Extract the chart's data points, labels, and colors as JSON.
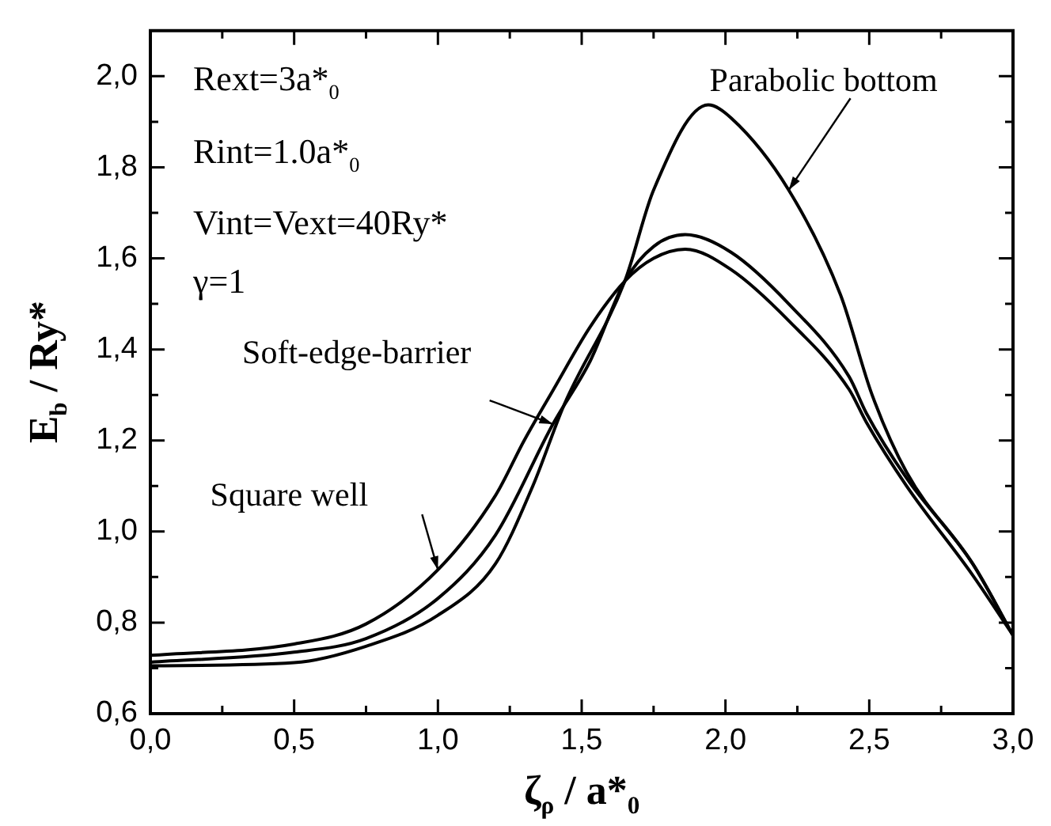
{
  "chart_data": {
    "type": "line",
    "xlabel": "ζ$_{ρ}$ / a*$_{0}$",
    "ylabel": "E$_{b}$ / Ry*",
    "xlim": [
      0,
      3
    ],
    "ylim": [
      0.6,
      2.1
    ],
    "xticks": [
      {
        "value": 0,
        "label": "0,0"
      },
      {
        "value": 0.25,
        "label": null
      },
      {
        "value": 0.5,
        "label": "0,5"
      },
      {
        "value": 0.75,
        "label": null
      },
      {
        "value": 1,
        "label": "1,0"
      },
      {
        "value": 1.25,
        "label": null
      },
      {
        "value": 1.5,
        "label": "1,5"
      },
      {
        "value": 1.75,
        "label": null
      },
      {
        "value": 2,
        "label": "2,0"
      },
      {
        "value": 2.25,
        "label": null
      },
      {
        "value": 2.5,
        "label": "2,5"
      },
      {
        "value": 2.75,
        "label": null
      },
      {
        "value": 3,
        "label": "3,0"
      }
    ],
    "yticks": [
      {
        "value": 0.6,
        "label": "0,6"
      },
      {
        "value": 0.7,
        "label": null
      },
      {
        "value": 0.8,
        "label": "0,8"
      },
      {
        "value": 0.9,
        "label": null
      },
      {
        "value": 1,
        "label": "1,0"
      },
      {
        "value": 1.1,
        "label": null
      },
      {
        "value": 1.2,
        "label": "1,2"
      },
      {
        "value": 1.3,
        "label": null
      },
      {
        "value": 1.4,
        "label": "1,4"
      },
      {
        "value": 1.5,
        "label": null
      },
      {
        "value": 1.6,
        "label": "1,6"
      },
      {
        "value": 1.7,
        "label": null
      },
      {
        "value": 1.8,
        "label": "1,8"
      },
      {
        "value": 1.9,
        "label": null
      },
      {
        "value": 2,
        "label": "2,0"
      }
    ],
    "grid": false,
    "legend": false,
    "marker": "none",
    "line_style": "solid",
    "series": [
      {
        "color": "#000000",
        "x": [
          0,
          0.5,
          0.75,
          1.0,
          1.2,
          1.3,
          1.4,
          1.53,
          1.65,
          1.75,
          1.86,
          2.02,
          2.22,
          2.43,
          2.49,
          2.63,
          2.86,
          3.0
        ],
        "values": [
          0.728,
          0.753,
          0.797,
          0.916,
          1.079,
          1.2,
          1.31,
          1.45,
          1.55,
          1.6,
          1.62,
          1.575,
          1.463,
          1.312,
          1.24,
          1.1,
          0.904,
          0.772
        ]
      },
      {
        "color": "#000000",
        "x": [
          0,
          0.5,
          0.75,
          1.0,
          1.2,
          1.4,
          1.53,
          1.65,
          1.75,
          1.86,
          2.02,
          2.22,
          2.43,
          2.49,
          2.63,
          2.86,
          3.0
        ],
        "values": [
          0.713,
          0.735,
          0.765,
          0.853,
          0.992,
          1.236,
          1.375,
          1.55,
          1.626,
          1.652,
          1.613,
          1.5,
          1.34,
          1.26,
          1.117,
          0.929,
          0.772
        ]
      },
      {
        "color": "#000000",
        "x": [
          0,
          0.5,
          0.75,
          1.0,
          1.2,
          1.33,
          1.44,
          1.65,
          1.75,
          1.94,
          2.02,
          2.22,
          2.4,
          2.51,
          2.63,
          2.86,
          3.0
        ],
        "values": [
          0.705,
          0.712,
          0.748,
          0.816,
          0.929,
          1.1,
          1.28,
          1.55,
          1.75,
          1.937,
          1.908,
          1.75,
          1.52,
          1.3,
          1.13,
          0.929,
          0.772
        ]
      }
    ],
    "annotations": [
      "Rext=3a*$_{0}$",
      "Rint=1.0a*$_{0}$",
      "Vint=Vext=40Ry*",
      "γ=1",
      {
        "text": "Parabolic bottom",
        "x": 2.22,
        "y": 1.75
      },
      {
        "text": "Soft-edge-barrier",
        "x": 1.4,
        "y": 1.236
      },
      {
        "text": "Square well",
        "x": 1.0,
        "y": 0.916
      }
    ]
  }
}
